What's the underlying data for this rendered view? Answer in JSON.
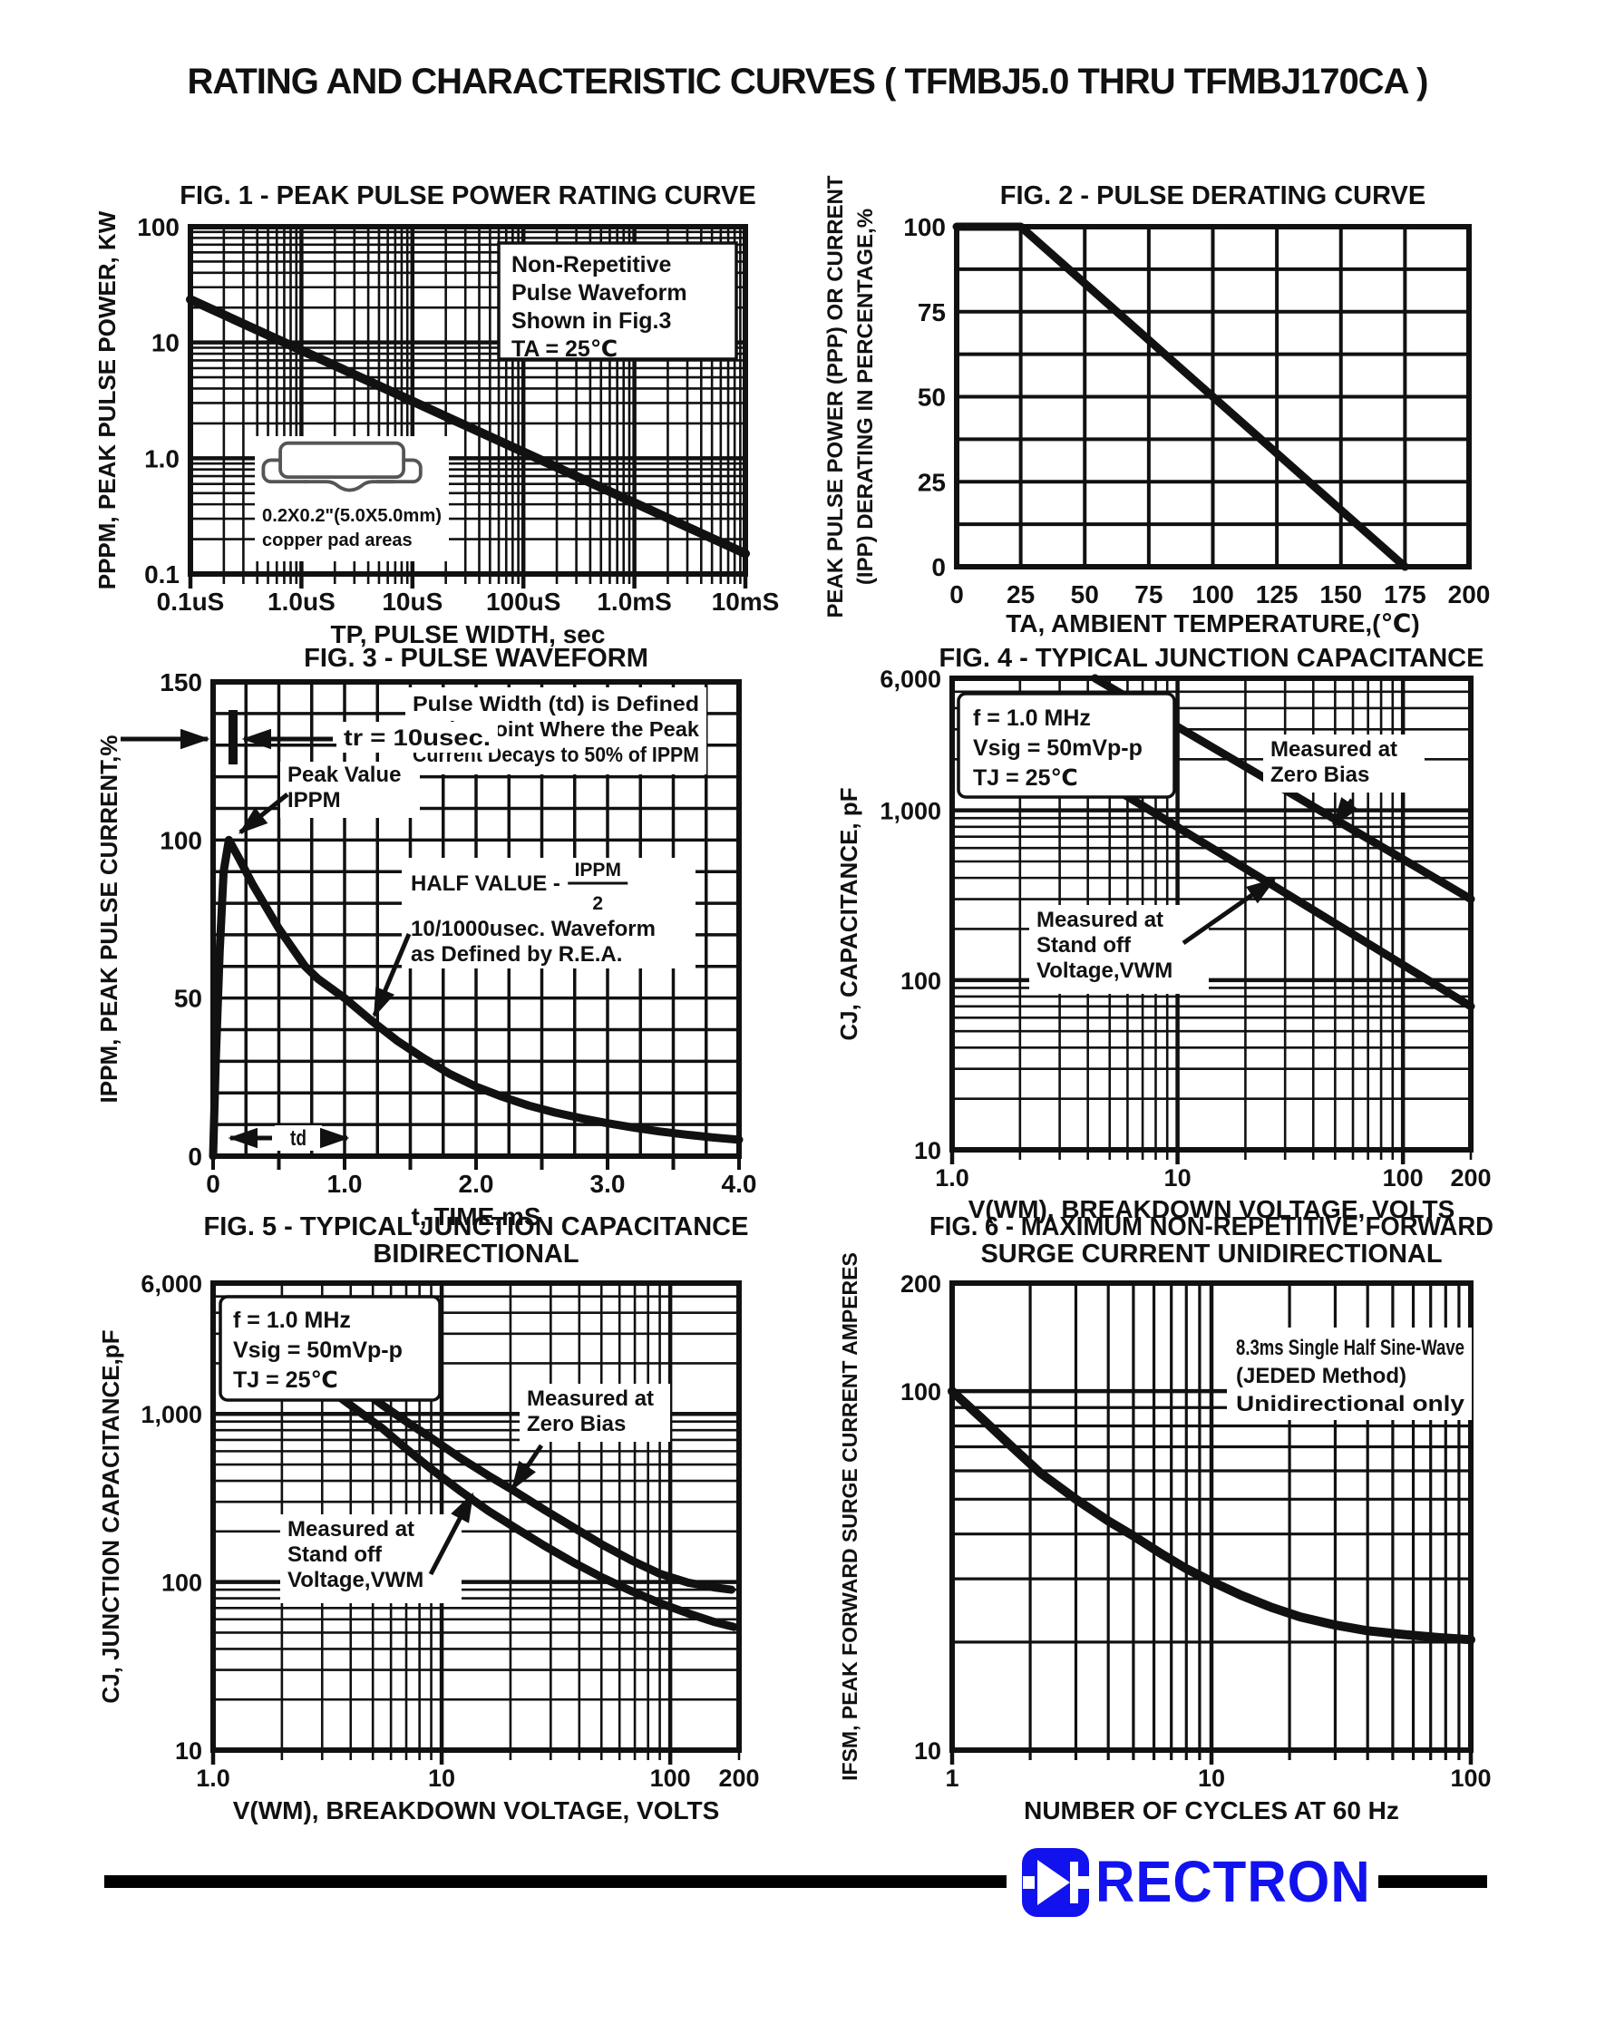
{
  "page": {
    "title": "RATING AND CHARACTERISTIC CURVES ( TFMBJ5.0 THRU TFMBJ170CA )",
    "ink": "#111111",
    "brand": {
      "name": "RECTRON",
      "color": "#1212EE"
    }
  },
  "chart_data": [
    {
      "id": "fig1",
      "type": "line",
      "title": "FIG. 1 - PEAK PULSE POWER RATING CURVE",
      "xlabel": "TP, PULSE WIDTH, sec",
      "ylabel": "PPPM, PEAK PULSE POWER, KW",
      "x": {
        "scale": "log",
        "min": 1e-07,
        "max": 0.01,
        "ticks": [
          [
            1e-07,
            "0.1uS"
          ],
          [
            1e-06,
            "1.0uS"
          ],
          [
            1e-05,
            "10uS"
          ],
          [
            0.0001,
            "100uS"
          ],
          [
            0.001,
            "1.0mS"
          ],
          [
            0.01,
            "10mS"
          ]
        ]
      },
      "y": {
        "scale": "log",
        "min": 0.1,
        "max": 100,
        "ticks": [
          [
            0.1,
            "0.1"
          ],
          [
            1,
            "1.0"
          ],
          [
            10,
            "10"
          ],
          [
            100,
            "100"
          ]
        ]
      },
      "series": [
        {
          "name": "peak-pulse-power",
          "points": [
            [
              1e-07,
              23.5
            ],
            [
              0.01,
              0.15
            ]
          ]
        }
      ],
      "annotations": [
        {
          "id": "note",
          "lines": [
            "Non-Repetitive",
            "Pulse Waveform",
            "Shown in Fig.3",
            "TA = 25℃"
          ]
        },
        {
          "id": "pad",
          "lines": [
            "0.2X0.2\"(5.0X5.0mm)",
            "copper pad areas"
          ]
        }
      ]
    },
    {
      "id": "fig2",
      "type": "line",
      "title": "FIG. 2 - PULSE DERATING CURVE",
      "xlabel": "TA, AMBIENT TEMPERATURE,(℃)",
      "ylabel": "PEAK PULSE POWER (PPP) OR CURRENT",
      "ylabel2": "(IPP) DERATING IN PERCENTAGE,%",
      "x": {
        "scale": "linear",
        "min": 0,
        "max": 200,
        "step": 25,
        "ticks": [
          [
            0,
            "0"
          ],
          [
            25,
            "25"
          ],
          [
            50,
            "50"
          ],
          [
            75,
            "75"
          ],
          [
            100,
            "100"
          ],
          [
            125,
            "125"
          ],
          [
            150,
            "150"
          ],
          [
            175,
            "175"
          ],
          [
            200,
            "200"
          ]
        ]
      },
      "y": {
        "scale": "linear",
        "min": 0,
        "max": 100,
        "step": 12.5,
        "ticks": [
          [
            0,
            "0"
          ],
          [
            25,
            "25"
          ],
          [
            50,
            "50"
          ],
          [
            75,
            "75"
          ],
          [
            100,
            "100"
          ]
        ]
      },
      "series": [
        {
          "name": "derating",
          "points": [
            [
              0,
              100
            ],
            [
              25,
              100
            ],
            [
              175,
              0
            ]
          ]
        }
      ],
      "annotations": []
    },
    {
      "id": "fig3",
      "type": "line",
      "title": "FIG. 3 - PULSE WAVEFORM",
      "xlabel": "t, TIME,mS",
      "ylabel": "IPPM, PEAK PULSE CURRENT,%",
      "x": {
        "scale": "linear",
        "min": 0,
        "max": 4,
        "step": 0.25,
        "ticks": [
          [
            0,
            "0"
          ],
          [
            1,
            "1.0"
          ],
          [
            2,
            "2.0"
          ],
          [
            3,
            "3.0"
          ],
          [
            4,
            "4.0"
          ]
        ]
      },
      "y": {
        "scale": "linear",
        "min": 0,
        "max": 150,
        "step": 10,
        "ticks": [
          [
            0,
            "0"
          ],
          [
            50,
            "50"
          ],
          [
            100,
            "100"
          ],
          [
            150,
            "150"
          ]
        ]
      },
      "series": [
        {
          "name": "pulse-waveform",
          "points": [
            [
              0,
              0
            ],
            [
              0.02,
              30
            ],
            [
              0.05,
              65
            ],
            [
              0.08,
              90
            ],
            [
              0.12,
              100
            ],
            [
              0.2,
              94
            ],
            [
              0.3,
              86
            ],
            [
              0.4,
              79
            ],
            [
              0.5,
              72
            ],
            [
              0.6,
              66
            ],
            [
              0.7,
              60
            ],
            [
              0.8,
              56
            ],
            [
              0.9,
              53
            ],
            [
              1.0,
              50
            ],
            [
              1.2,
              43
            ],
            [
              1.4,
              36.5
            ],
            [
              1.6,
              31
            ],
            [
              1.8,
              26
            ],
            [
              2.0,
              22
            ],
            [
              2.2,
              18.8
            ],
            [
              2.4,
              16
            ],
            [
              2.6,
              13.8
            ],
            [
              2.8,
              12
            ],
            [
              3.0,
              10.4
            ],
            [
              3.2,
              9
            ],
            [
              3.4,
              7.8
            ],
            [
              3.6,
              6.8
            ],
            [
              3.8,
              5.9
            ],
            [
              4.0,
              5.2
            ]
          ]
        }
      ],
      "annotations": [
        {
          "id": "td-def",
          "lines": [
            "Pulse Width (td) is Defined",
            "as the Point Where the Peak",
            "Current Decays to 50% of IPPM"
          ]
        },
        {
          "id": "tr",
          "lines": [
            "tr = 10usec."
          ]
        },
        {
          "id": "peak",
          "lines": [
            "Peak Value",
            "IPPM"
          ]
        },
        {
          "id": "half",
          "pre": "HALF VALUE -",
          "num": "IPPM",
          "den": "2",
          "lines": [
            "10/1000usec. Waveform",
            "as Defined by R.E.A."
          ]
        },
        {
          "id": "td",
          "lines": [
            "td"
          ]
        }
      ]
    },
    {
      "id": "fig4",
      "type": "line",
      "title": "FIG. 4 - TYPICAL JUNCTION CAPACITANCE",
      "xlabel": "V(WM), BREAKDOWN VOLTAGE, VOLTS",
      "ylabel": "CJ, CAPACITANCE, pF",
      "x": {
        "scale": "log",
        "min": 1,
        "max": 200,
        "ticks": [
          [
            1,
            "1.0"
          ],
          [
            10,
            "10"
          ],
          [
            100,
            "100"
          ],
          [
            200,
            "200"
          ]
        ]
      },
      "y": {
        "scale": "log",
        "min": 10,
        "max": 6000,
        "ticks": [
          [
            10,
            "10"
          ],
          [
            100,
            "100"
          ],
          [
            1000,
            "1,000"
          ],
          [
            6000,
            "6,000"
          ]
        ]
      },
      "series": [
        {
          "name": "zero-bias",
          "points": [
            [
              4.3,
              6000
            ],
            [
              200,
              300
            ]
          ]
        },
        {
          "name": "stand-off",
          "points": [
            [
              4.4,
              1550
            ],
            [
              200,
              70
            ]
          ]
        }
      ],
      "annotations": [
        {
          "id": "conditions",
          "lines": [
            "f = 1.0 MHz",
            "Vsig = 50mVp-p",
            "TJ = 25℃"
          ]
        },
        {
          "id": "zero",
          "lines": [
            "Measured at",
            "Zero Bias"
          ]
        },
        {
          "id": "standoff",
          "lines": [
            "Measured at",
            "Stand off",
            "Voltage,VWM"
          ]
        }
      ]
    },
    {
      "id": "fig5",
      "type": "line",
      "title": "FIG. 5 - TYPICAL JUNCTION CAPACITANCE",
      "title2": "BIDIRECTIONAL",
      "xlabel": "V(WM), BREAKDOWN VOLTAGE, VOLTS",
      "ylabel": "CJ, JUNCTION CAPACITANCE,pF",
      "x": {
        "scale": "log",
        "min": 1,
        "max": 200,
        "ticks": [
          [
            1,
            "1.0"
          ],
          [
            10,
            "10"
          ],
          [
            100,
            "100"
          ],
          [
            200,
            "200"
          ]
        ]
      },
      "y": {
        "scale": "log",
        "min": 10,
        "max": 6000,
        "ticks": [
          [
            10,
            "10"
          ],
          [
            100,
            "100"
          ],
          [
            1000,
            "1,000"
          ],
          [
            6000,
            "6,000"
          ]
        ]
      },
      "series": [
        {
          "name": "zero-bias",
          "points": [
            [
              3.6,
              1650
            ],
            [
              4.5,
              1380
            ],
            [
              5.5,
              1130
            ],
            [
              7,
              900
            ],
            [
              9,
              720
            ],
            [
              12,
              550
            ],
            [
              16,
              430
            ],
            [
              21,
              345
            ],
            [
              28,
              270
            ],
            [
              38,
              210
            ],
            [
              50,
              168
            ],
            [
              68,
              134
            ],
            [
              90,
              112
            ],
            [
              120,
              99
            ],
            [
              155,
              93
            ],
            [
              185,
              90
            ]
          ]
        },
        {
          "name": "stand-off",
          "points": [
            [
              3.6,
              1250
            ],
            [
              4.5,
              1000
            ],
            [
              5.5,
              820
            ],
            [
              7,
              620
            ],
            [
              9,
              470
            ],
            [
              12,
              350
            ],
            [
              16,
              265
            ],
            [
              21,
              210
            ],
            [
              28,
              165
            ],
            [
              38,
              130
            ],
            [
              50,
              107
            ],
            [
              68,
              88
            ],
            [
              90,
              75
            ],
            [
              120,
              65
            ],
            [
              155,
              58
            ],
            [
              190,
              54
            ]
          ]
        }
      ],
      "annotations": [
        {
          "id": "conditions",
          "lines": [
            "f = 1.0 MHz",
            "Vsig = 50mVp-p",
            "TJ = 25℃"
          ]
        },
        {
          "id": "zero",
          "lines": [
            "Measured at",
            "Zero Bias"
          ]
        },
        {
          "id": "standoff",
          "lines": [
            "Measured at",
            "Stand off",
            "Voltage,VWM"
          ]
        }
      ]
    },
    {
      "id": "fig6",
      "type": "line",
      "title": "FIG. 6 - MAXIMUM NON-REPETITIVE FORWARD",
      "title2": "SURGE CURRENT UNIDIRECTIONAL",
      "xlabel": "NUMBER OF CYCLES AT 60 Hz",
      "ylabel": "IFSM, PEAK FORWARD SURGE CURRENT AMPERES",
      "x": {
        "scale": "log",
        "min": 1,
        "max": 100,
        "ticks": [
          [
            1,
            "1"
          ],
          [
            10,
            "10"
          ],
          [
            100,
            "100"
          ]
        ]
      },
      "y": {
        "scale": "log",
        "min": 10,
        "max": 200,
        "ticks": [
          [
            10,
            "10"
          ],
          [
            100,
            "100"
          ],
          [
            200,
            "200"
          ]
        ]
      },
      "series": [
        {
          "name": "surge-current",
          "points": [
            [
              1,
              100
            ],
            [
              1.3,
              84
            ],
            [
              1.7,
              70
            ],
            [
              2.2,
              59
            ],
            [
              3,
              50
            ],
            [
              4,
              43.5
            ],
            [
              5,
              39.5
            ],
            [
              6.5,
              35
            ],
            [
              8,
              32
            ],
            [
              10,
              29.5
            ],
            [
              13,
              27
            ],
            [
              17,
              25
            ],
            [
              22,
              23.5
            ],
            [
              30,
              22.3
            ],
            [
              40,
              21.5
            ],
            [
              55,
              21
            ],
            [
              75,
              20.6
            ],
            [
              100,
              20.3
            ]
          ]
        }
      ],
      "annotations": [
        {
          "id": "note",
          "lines": [
            "8.3ms Single Half Sine-Wave",
            "(JEDED Method)",
            "Unidirectional only"
          ]
        }
      ]
    }
  ]
}
